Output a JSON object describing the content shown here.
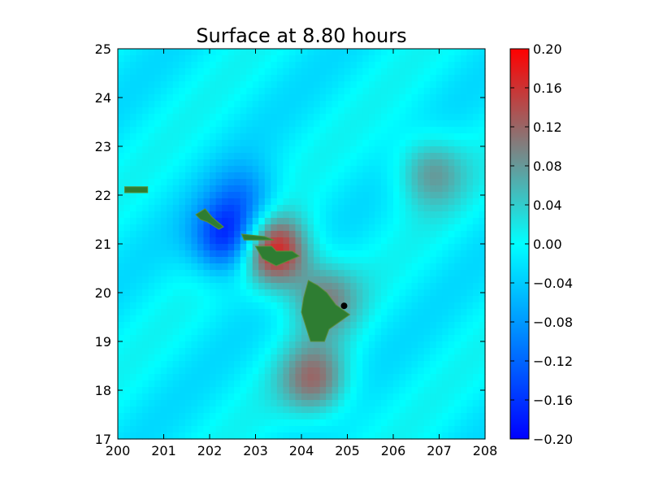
{
  "chart_data": {
    "type": "heatmap",
    "title": "Surface at 8.80 hours",
    "xlabel": "",
    "ylabel": "",
    "xlim": [
      200,
      208
    ],
    "ylim": [
      17,
      25
    ],
    "x_ticks": [
      "200",
      "201",
      "202",
      "203",
      "204",
      "205",
      "206",
      "207",
      "208"
    ],
    "y_ticks": [
      "17",
      "18",
      "19",
      "20",
      "21",
      "22",
      "23",
      "24",
      "25"
    ],
    "grid": false,
    "colorbar": {
      "range": [
        -0.2,
        0.2
      ],
      "ticks": [
        "0.20",
        "0.16",
        "0.12",
        "0.08",
        "0.04",
        "0.00",
        "−0.04",
        "−0.08",
        "−0.12",
        "−0.16",
        "−0.20"
      ],
      "tick_values": [
        0.2,
        0.16,
        0.12,
        0.08,
        0.04,
        0.0,
        -0.04,
        -0.08,
        -0.12,
        -0.16,
        -0.2
      ],
      "colors": [
        "#0000ff",
        "#00ffff",
        "#ff0000"
      ]
    },
    "surface_features": [
      {
        "name": "depression",
        "x": 202.4,
        "y": 21.1,
        "value": -0.17
      },
      {
        "name": "depression",
        "x": 202.8,
        "y": 21.9,
        "value": -0.08
      },
      {
        "name": "peak",
        "x": 203.4,
        "y": 20.85,
        "value": 0.2
      },
      {
        "name": "elevation",
        "x": 204.3,
        "y": 18.2,
        "value": 0.12
      },
      {
        "name": "elevation",
        "x": 204.5,
        "y": 19.9,
        "value": 0.1
      },
      {
        "name": "elevation",
        "x": 206.8,
        "y": 22.5,
        "value": 0.09
      }
    ],
    "land_color": "#2e7d32",
    "gauge_marker": {
      "x": 204.93,
      "y": 19.73
    }
  }
}
